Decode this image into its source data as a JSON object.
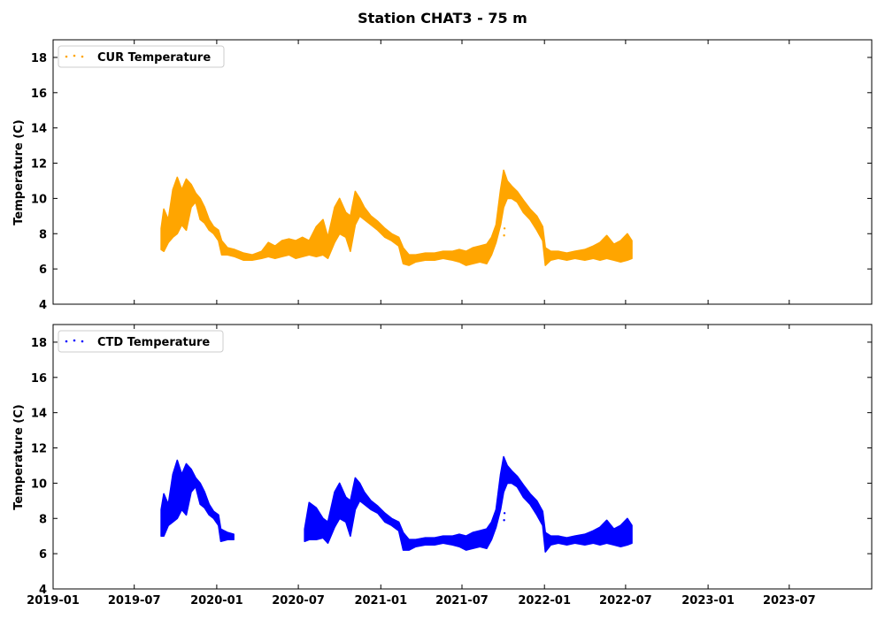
{
  "chart_data": {
    "title": "Station CHAT3 - 75 m",
    "type": "scatter",
    "shared_x": {
      "range": [
        "2019-01-01",
        "2024-01-01"
      ],
      "ticks": [
        "2019-01",
        "2019-07",
        "2020-01",
        "2020-07",
        "2021-01",
        "2021-07",
        "2022-01",
        "2022-07",
        "2023-01",
        "2023-07"
      ]
    },
    "panels": [
      {
        "ylabel": "Temperature (C)",
        "ylim": [
          4,
          19
        ],
        "yticks": [
          4,
          6,
          8,
          10,
          12,
          14,
          16,
          18
        ],
        "legend": "top-left",
        "series": [
          {
            "name": "CUR Temperature",
            "color": "#FFA500",
            "points": [
              [
                "2019-08-30",
                7.1,
                8.3
              ],
              [
                "2019-09-05",
                7.0,
                9.4
              ],
              [
                "2019-09-15",
                7.5,
                8.8
              ],
              [
                "2019-09-25",
                7.8,
                10.5
              ],
              [
                "2019-10-05",
                8.0,
                11.2
              ],
              [
                "2019-10-15",
                8.5,
                10.5
              ],
              [
                "2019-10-25",
                8.2,
                11.1
              ],
              [
                "2019-11-05",
                9.5,
                10.8
              ],
              [
                "2019-11-15",
                9.8,
                10.3
              ],
              [
                "2019-11-25",
                8.8,
                10.0
              ],
              [
                "2019-12-05",
                8.6,
                9.5
              ],
              [
                "2019-12-15",
                8.2,
                8.8
              ],
              [
                "2019-12-25",
                8.0,
                8.4
              ],
              [
                "2020-01-05",
                7.6,
                8.2
              ],
              [
                "2020-01-12",
                6.8,
                7.6
              ],
              [
                "2020-01-25",
                6.8,
                7.2
              ],
              [
                "2020-02-10",
                6.7,
                7.1
              ],
              [
                "2020-03-01",
                6.5,
                6.9
              ],
              [
                "2020-03-20",
                6.5,
                6.8
              ],
              [
                "2020-04-10",
                6.6,
                7.0
              ],
              [
                "2020-04-25",
                6.7,
                7.5
              ],
              [
                "2020-05-10",
                6.6,
                7.3
              ],
              [
                "2020-05-25",
                6.7,
                7.6
              ],
              [
                "2020-06-10",
                6.8,
                7.7
              ],
              [
                "2020-06-25",
                6.6,
                7.6
              ],
              [
                "2020-07-10",
                6.7,
                7.8
              ],
              [
                "2020-07-25",
                6.8,
                7.6
              ],
              [
                "2020-08-10",
                6.7,
                8.4
              ],
              [
                "2020-08-25",
                6.8,
                8.8
              ],
              [
                "2020-09-05",
                6.6,
                7.8
              ],
              [
                "2020-09-20",
                7.5,
                9.5
              ],
              [
                "2020-10-01",
                8.0,
                10.0
              ],
              [
                "2020-10-15",
                7.8,
                9.2
              ],
              [
                "2020-10-25",
                7.0,
                9.0
              ],
              [
                "2020-11-05",
                8.5,
                10.4
              ],
              [
                "2020-11-15",
                9.0,
                10.0
              ],
              [
                "2020-11-25",
                8.8,
                9.5
              ],
              [
                "2020-12-10",
                8.5,
                9.0
              ],
              [
                "2020-12-25",
                8.2,
                8.7
              ],
              [
                "2021-01-10",
                7.8,
                8.3
              ],
              [
                "2021-01-25",
                7.6,
                8.0
              ],
              [
                "2021-02-10",
                7.3,
                7.8
              ],
              [
                "2021-02-20",
                6.3,
                7.2
              ],
              [
                "2021-03-05",
                6.2,
                6.8
              ],
              [
                "2021-03-20",
                6.4,
                6.8
              ],
              [
                "2021-04-10",
                6.5,
                6.9
              ],
              [
                "2021-05-01",
                6.5,
                6.9
              ],
              [
                "2021-05-20",
                6.6,
                7.0
              ],
              [
                "2021-06-10",
                6.5,
                7.0
              ],
              [
                "2021-06-25",
                6.4,
                7.1
              ],
              [
                "2021-07-10",
                6.2,
                7.0
              ],
              [
                "2021-07-25",
                6.3,
                7.2
              ],
              [
                "2021-08-10",
                6.4,
                7.3
              ],
              [
                "2021-08-25",
                6.3,
                7.4
              ],
              [
                "2021-09-05",
                6.8,
                7.8
              ],
              [
                "2021-09-15",
                7.5,
                8.5
              ],
              [
                "2021-09-25",
                8.5,
                10.5
              ],
              [
                "2021-10-02",
                9.5,
                11.6
              ],
              [
                "2021-10-10",
                10.0,
                11.0
              ],
              [
                "2021-10-20",
                10.0,
                10.7
              ],
              [
                "2021-11-01",
                9.8,
                10.4
              ],
              [
                "2021-11-15",
                9.2,
                9.9
              ],
              [
                "2021-11-30",
                8.8,
                9.4
              ],
              [
                "2021-12-15",
                8.2,
                9.0
              ],
              [
                "2021-12-28",
                7.6,
                8.4
              ],
              [
                "2022-01-03",
                6.2,
                7.2
              ],
              [
                "2022-01-15",
                6.5,
                7.0
              ],
              [
                "2022-02-01",
                6.6,
                7.0
              ],
              [
                "2022-02-20",
                6.5,
                6.9
              ],
              [
                "2022-03-10",
                6.6,
                7.0
              ],
              [
                "2022-04-01",
                6.5,
                7.1
              ],
              [
                "2022-04-20",
                6.6,
                7.3
              ],
              [
                "2022-05-05",
                6.5,
                7.5
              ],
              [
                "2022-05-20",
                6.6,
                7.9
              ],
              [
                "2022-06-05",
                6.5,
                7.4
              ],
              [
                "2022-06-20",
                6.4,
                7.6
              ],
              [
                "2022-07-05",
                6.5,
                8.0
              ],
              [
                "2022-07-15",
                6.6,
                7.6
              ]
            ],
            "outliers": [
              [
                "2021-10-03",
                7.9
              ],
              [
                "2021-10-04",
                8.3
              ]
            ]
          }
        ]
      },
      {
        "ylabel": "Temperature (C)",
        "ylim": [
          4,
          19
        ],
        "yticks": [
          4,
          6,
          8,
          10,
          12,
          14,
          16,
          18
        ],
        "legend": "top-left",
        "series": [
          {
            "name": "CTD Temperature",
            "color": "#0000FF",
            "points": [
              [
                "2019-08-30",
                7.0,
                8.5
              ],
              [
                "2019-09-05",
                7.0,
                9.4
              ],
              [
                "2019-09-15",
                7.6,
                8.8
              ],
              [
                "2019-09-25",
                7.8,
                10.5
              ],
              [
                "2019-10-05",
                8.0,
                11.3
              ],
              [
                "2019-10-15",
                8.5,
                10.5
              ],
              [
                "2019-10-25",
                8.2,
                11.1
              ],
              [
                "2019-11-05",
                9.5,
                10.8
              ],
              [
                "2019-11-15",
                9.8,
                10.3
              ],
              [
                "2019-11-25",
                8.8,
                10.0
              ],
              [
                "2019-12-05",
                8.6,
                9.5
              ],
              [
                "2019-12-15",
                8.2,
                8.8
              ],
              [
                "2019-12-25",
                8.0,
                8.4
              ],
              [
                "2020-01-05",
                7.6,
                8.2
              ],
              [
                "2020-01-10",
                6.7,
                7.4
              ],
              [
                "2020-01-25",
                6.8,
                7.2
              ],
              [
                "2020-02-08",
                6.8,
                7.1
              ],
              null,
              [
                "2020-07-15",
                6.7,
                7.4
              ],
              [
                "2020-07-25",
                6.8,
                8.9
              ],
              [
                "2020-08-10",
                6.8,
                8.6
              ],
              [
                "2020-08-25",
                6.9,
                8.0
              ],
              [
                "2020-09-05",
                6.6,
                7.8
              ],
              [
                "2020-09-20",
                7.5,
                9.5
              ],
              [
                "2020-10-01",
                8.0,
                10.0
              ],
              [
                "2020-10-15",
                7.8,
                9.2
              ],
              [
                "2020-10-25",
                7.0,
                9.0
              ],
              [
                "2020-11-05",
                8.5,
                10.3
              ],
              [
                "2020-11-15",
                9.0,
                10.0
              ],
              [
                "2020-11-25",
                8.8,
                9.5
              ],
              [
                "2020-12-10",
                8.5,
                9.0
              ],
              [
                "2020-12-25",
                8.3,
                8.7
              ],
              [
                "2021-01-10",
                7.8,
                8.3
              ],
              [
                "2021-01-25",
                7.6,
                8.0
              ],
              [
                "2021-02-10",
                7.3,
                7.8
              ],
              [
                "2021-02-20",
                6.2,
                7.2
              ],
              [
                "2021-03-05",
                6.2,
                6.8
              ],
              [
                "2021-03-20",
                6.4,
                6.8
              ],
              [
                "2021-04-10",
                6.5,
                6.9
              ],
              [
                "2021-05-01",
                6.5,
                6.9
              ],
              [
                "2021-05-20",
                6.6,
                7.0
              ],
              [
                "2021-06-10",
                6.5,
                7.0
              ],
              [
                "2021-06-25",
                6.4,
                7.1
              ],
              [
                "2021-07-10",
                6.2,
                7.0
              ],
              [
                "2021-07-25",
                6.3,
                7.2
              ],
              [
                "2021-08-10",
                6.4,
                7.3
              ],
              [
                "2021-08-25",
                6.3,
                7.4
              ],
              [
                "2021-09-05",
                6.8,
                7.8
              ],
              [
                "2021-09-15",
                7.5,
                8.5
              ],
              [
                "2021-09-25",
                8.5,
                10.5
              ],
              [
                "2021-10-02",
                9.5,
                11.5
              ],
              [
                "2021-10-10",
                10.0,
                11.0
              ],
              [
                "2021-10-20",
                10.0,
                10.7
              ],
              [
                "2021-11-01",
                9.8,
                10.4
              ],
              [
                "2021-11-15",
                9.2,
                9.9
              ],
              [
                "2021-11-30",
                8.8,
                9.4
              ],
              [
                "2021-12-15",
                8.2,
                9.0
              ],
              [
                "2021-12-28",
                7.6,
                8.4
              ],
              [
                "2022-01-03",
                6.1,
                7.2
              ],
              [
                "2022-01-15",
                6.5,
                7.0
              ],
              [
                "2022-02-01",
                6.6,
                7.0
              ],
              [
                "2022-02-20",
                6.5,
                6.9
              ],
              [
                "2022-03-10",
                6.6,
                7.0
              ],
              [
                "2022-04-01",
                6.5,
                7.1
              ],
              [
                "2022-04-20",
                6.6,
                7.3
              ],
              [
                "2022-05-05",
                6.5,
                7.5
              ],
              [
                "2022-05-20",
                6.6,
                7.9
              ],
              [
                "2022-06-05",
                6.5,
                7.4
              ],
              [
                "2022-06-20",
                6.4,
                7.6
              ],
              [
                "2022-07-05",
                6.5,
                8.0
              ],
              [
                "2022-07-15",
                6.6,
                7.6
              ]
            ],
            "outliers": [
              [
                "2021-10-03",
                7.9
              ],
              [
                "2021-10-04",
                8.3
              ]
            ]
          }
        ]
      }
    ]
  }
}
